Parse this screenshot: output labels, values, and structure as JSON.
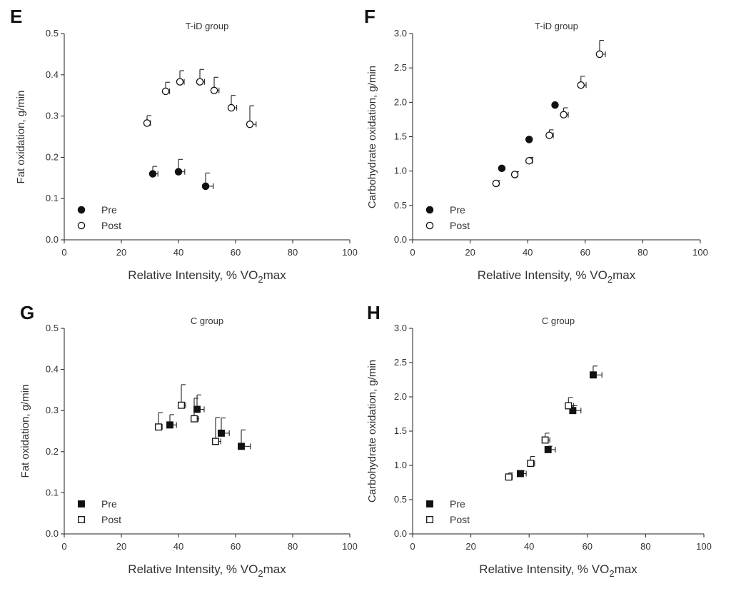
{
  "legend_labels": {
    "pre": "Pre",
    "post": "Post"
  },
  "colors": {
    "marker": "#111111",
    "background": "#ffffff"
  },
  "chart_data": [
    {
      "type": "scatter",
      "panel": "E",
      "title": "T-iD group",
      "xlabel_main": "Relative Intensity, % VO",
      "xlabel_sub": "2",
      "xlabel_tail": "max",
      "ylabel": "Fat oxidation, g/min",
      "xlim": [
        0,
        100
      ],
      "ylim": [
        0,
        0.5
      ],
      "xticks": [
        0,
        20,
        40,
        60,
        80,
        100
      ],
      "yticks": [
        "0.0",
        "0.1",
        "0.2",
        "0.3",
        "0.4",
        "0.5"
      ],
      "marker": "circle",
      "series": [
        {
          "name": "Pre",
          "filled": true,
          "points": [
            {
              "x": 31,
              "y": 0.16,
              "xerr": 1.8,
              "yerr": 0.018
            },
            {
              "x": 40,
              "y": 0.165,
              "xerr": 2.2,
              "yerr": 0.03
            },
            {
              "x": 49.5,
              "y": 0.13,
              "xerr": 2.7,
              "yerr": 0.032
            }
          ]
        },
        {
          "name": "Post",
          "filled": false,
          "points": [
            {
              "x": 29,
              "y": 0.283,
              "xerr": 1.2,
              "yerr": 0.018
            },
            {
              "x": 35.5,
              "y": 0.36,
              "xerr": 1.4,
              "yerr": 0.022
            },
            {
              "x": 40.5,
              "y": 0.383,
              "xerr": 1.5,
              "yerr": 0.027
            },
            {
              "x": 47.5,
              "y": 0.383,
              "xerr": 1.6,
              "yerr": 0.03
            },
            {
              "x": 52.5,
              "y": 0.362,
              "xerr": 1.7,
              "yerr": 0.032
            },
            {
              "x": 58.5,
              "y": 0.32,
              "xerr": 1.9,
              "yerr": 0.03
            },
            {
              "x": 65,
              "y": 0.28,
              "xerr": 2.2,
              "yerr": 0.045
            }
          ]
        }
      ]
    },
    {
      "type": "scatter",
      "panel": "F",
      "title": "T-iD group",
      "xlabel_main": "Relative Intensity, % VO",
      "xlabel_sub": "2",
      "xlabel_tail": "max",
      "ylabel": "Carbohydrate oxidation, g/min",
      "xlim": [
        0,
        100
      ],
      "ylim": [
        0,
        3.0
      ],
      "xticks": [
        0,
        20,
        40,
        60,
        80,
        100
      ],
      "yticks": [
        "0.0",
        "0.5",
        "1.0",
        "1.5",
        "2.0",
        "2.5",
        "3.0"
      ],
      "marker": "circle",
      "series": [
        {
          "name": "Pre",
          "filled": true,
          "points": [
            {
              "x": 31,
              "y": 1.04,
              "xerr": 0,
              "yerr": 0
            },
            {
              "x": 40.5,
              "y": 1.46,
              "xerr": 0,
              "yerr": 0
            },
            {
              "x": 49.5,
              "y": 1.96,
              "xerr": 0,
              "yerr": 0
            }
          ]
        },
        {
          "name": "Post",
          "filled": false,
          "points": [
            {
              "x": 29,
              "y": 0.82,
              "xerr": 1.0,
              "yerr": 0.04
            },
            {
              "x": 35.5,
              "y": 0.95,
              "xerr": 1.0,
              "yerr": 0.04
            },
            {
              "x": 40.5,
              "y": 1.15,
              "xerr": 1.2,
              "yerr": 0.05
            },
            {
              "x": 47.5,
              "y": 1.52,
              "xerr": 1.4,
              "yerr": 0.08
            },
            {
              "x": 52.5,
              "y": 1.82,
              "xerr": 1.6,
              "yerr": 0.1
            },
            {
              "x": 58.5,
              "y": 2.25,
              "xerr": 1.8,
              "yerr": 0.13
            },
            {
              "x": 65,
              "y": 2.7,
              "xerr": 2.0,
              "yerr": 0.2
            }
          ]
        }
      ]
    },
    {
      "type": "scatter",
      "panel": "G",
      "title": "C group",
      "xlabel_main": "Relative Intensity, % VO",
      "xlabel_sub": "2",
      "xlabel_tail": "max",
      "ylabel": "Fat oxidation, g/min",
      "xlim": [
        0,
        100
      ],
      "ylim": [
        0,
        0.5
      ],
      "xticks": [
        0,
        20,
        40,
        60,
        80,
        100
      ],
      "yticks": [
        "0.0",
        "0.1",
        "0.2",
        "0.3",
        "0.4",
        "0.5"
      ],
      "marker": "square",
      "series": [
        {
          "name": "Pre",
          "filled": true,
          "points": [
            {
              "x": 37,
              "y": 0.265,
              "xerr": 2.3,
              "yerr": 0.025
            },
            {
              "x": 46.5,
              "y": 0.303,
              "xerr": 2.5,
              "yerr": 0.035
            },
            {
              "x": 55,
              "y": 0.245,
              "xerr": 2.8,
              "yerr": 0.037
            },
            {
              "x": 62,
              "y": 0.213,
              "xerr": 3.2,
              "yerr": 0.04
            }
          ]
        },
        {
          "name": "Post",
          "filled": false,
          "points": [
            {
              "x": 33,
              "y": 0.26,
              "xerr": 1.3,
              "yerr": 0.035
            },
            {
              "x": 41,
              "y": 0.313,
              "xerr": 1.5,
              "yerr": 0.05
            },
            {
              "x": 45.5,
              "y": 0.28,
              "xerr": 1.6,
              "yerr": 0.05
            },
            {
              "x": 53,
              "y": 0.225,
              "xerr": 1.8,
              "yerr": 0.058
            }
          ]
        }
      ]
    },
    {
      "type": "scatter",
      "panel": "H",
      "title": "C group",
      "xlabel_main": "Relative Intensity, % VO",
      "xlabel_sub": "2",
      "xlabel_tail": "max",
      "ylabel": "Carbohydrate oxidation, g/min",
      "xlim": [
        0,
        100
      ],
      "ylim": [
        0,
        3.0
      ],
      "xticks": [
        0,
        20,
        40,
        60,
        80,
        100
      ],
      "yticks": [
        "0.0",
        "0.5",
        "1.0",
        "1.5",
        "2.0",
        "2.5",
        "3.0"
      ],
      "marker": "square",
      "series": [
        {
          "name": "Pre",
          "filled": true,
          "points": [
            {
              "x": 37,
              "y": 0.88,
              "xerr": 2.0,
              "yerr": 0.04
            },
            {
              "x": 46.5,
              "y": 1.23,
              "xerr": 2.5,
              "yerr": 0.05
            },
            {
              "x": 55,
              "y": 1.8,
              "xerr": 2.8,
              "yerr": 0.07
            },
            {
              "x": 62,
              "y": 2.32,
              "xerr": 3.0,
              "yerr": 0.13
            }
          ]
        },
        {
          "name": "Post",
          "filled": false,
          "points": [
            {
              "x": 33,
              "y": 0.83,
              "xerr": 1.2,
              "yerr": 0.06
            },
            {
              "x": 40.5,
              "y": 1.03,
              "xerr": 1.4,
              "yerr": 0.1
            },
            {
              "x": 45.5,
              "y": 1.37,
              "xerr": 1.6,
              "yerr": 0.1
            },
            {
              "x": 53.5,
              "y": 1.87,
              "xerr": 1.8,
              "yerr": 0.12
            }
          ]
        }
      ]
    }
  ]
}
